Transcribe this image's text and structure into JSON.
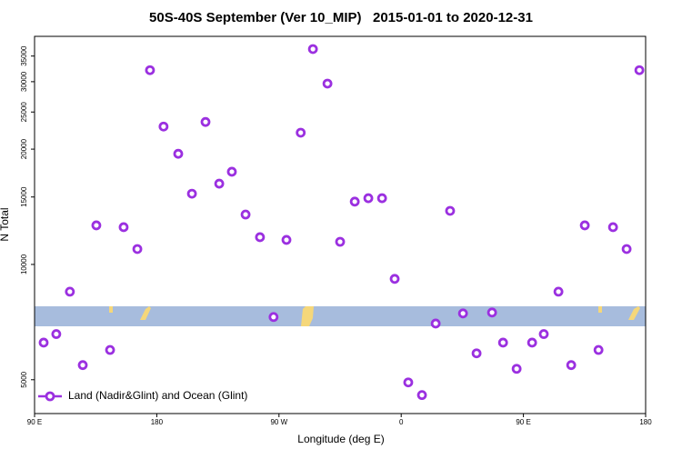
{
  "chart_data": {
    "type": "scatter",
    "title": "50S-40S September (Ver 10_MIP)   2015-01-01 to 2020-12-31",
    "xlabel": "Longitude (deg E)",
    "ylabel": "N Total",
    "x": [
      96.7,
      106,
      116,
      125.5,
      135.5,
      145.6,
      155.6,
      165.7,
      175,
      185,
      195.8,
      205.9,
      215.9,
      226,
      235.3,
      245.4,
      256,
      266,
      275.5,
      286,
      295,
      305.7,
      315,
      325.8,
      335.8,
      345.9,
      355.2,
      365.2,
      375.3,
      385.4,
      396,
      405.5,
      415.5,
      426.9,
      435,
      445,
      456.4,
      465,
      475.8,
      485.2,
      495.2,
      505.3,
      516,
      526,
      535.4
    ],
    "series": [
      {
        "name": "Land (Nadir&Glint) and Ocean (Glint)",
        "color": "#9b30e0",
        "values": [
          6250,
          6580,
          8490,
          5460,
          12650,
          5980,
          12510,
          10970,
          32150,
          22910,
          19450,
          15300,
          23550,
          16250,
          17460,
          13500,
          11780,
          7290,
          11590,
          22080,
          36500,
          29660,
          11460,
          14590,
          14890,
          14890,
          9170,
          4920,
          4560,
          7010,
          13800,
          7450,
          5860,
          7490,
          6250,
          5340,
          6250,
          6580,
          8490,
          5460,
          12650,
          5980,
          12510,
          10970,
          32150
        ]
      }
    ],
    "xlim": [
      90,
      540
    ],
    "xticks": [
      {
        "value": 90,
        "label": "90 E"
      },
      {
        "value": 180,
        "label": "180"
      },
      {
        "value": 270,
        "label": "90 W"
      },
      {
        "value": 360,
        "label": "0"
      },
      {
        "value": 450,
        "label": "90 E"
      },
      {
        "value": 540,
        "label": "180"
      }
    ],
    "ylim": [
      4080,
      39400
    ],
    "yticks": [
      5000,
      10000,
      15000,
      20000,
      25000,
      30000,
      35000
    ],
    "ylog": true,
    "legend": "bottom-left"
  }
}
